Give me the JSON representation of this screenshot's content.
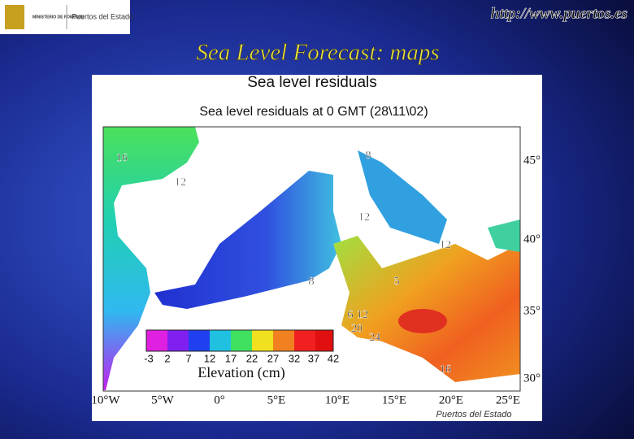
{
  "header": {
    "logo_ministry": "MINISTERIO DE FOMENTO",
    "logo_agency": "Puertos del Estado",
    "url": "http://www.puertos.es",
    "title": "Sea Level Forecast: maps"
  },
  "map": {
    "title": "Sea level residuals",
    "subtitle": "Sea level residuals at 0 GMT (28\\11\\02)",
    "longitude_labels": [
      "10°W",
      "5°W",
      "0°",
      "5°E",
      "10°E",
      "15°E",
      "20°E",
      "25°E"
    ],
    "latitude_labels": [
      "45°",
      "40°",
      "35°",
      "30°"
    ],
    "contour_labels": [
      "16",
      "12",
      "8",
      "12",
      "12",
      "8",
      "5",
      "6",
      "12",
      "20",
      "24",
      "16"
    ],
    "colorbar_ticks": [
      "-3",
      "2",
      "7",
      "12",
      "17",
      "22",
      "27",
      "32",
      "37",
      "42"
    ],
    "colorbar_label": "Elevation (cm)",
    "credit": "Puertos del Estado"
  }
}
